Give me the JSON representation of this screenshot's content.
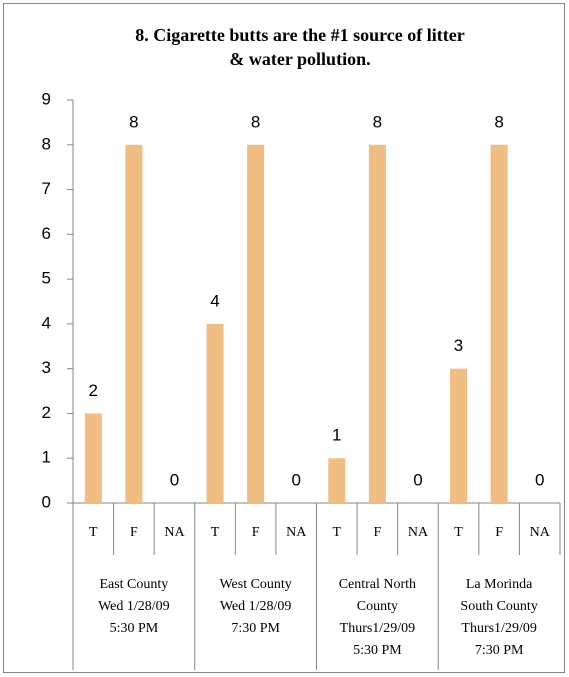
{
  "chart_data": {
    "type": "bar",
    "title": [
      "8. Cigarette butts are the #1 source of litter",
      "& water pollution."
    ],
    "categories": [
      "T",
      "F",
      "NA",
      "T",
      "F",
      "NA",
      "T",
      "F",
      "NA",
      "T",
      "F",
      "NA"
    ],
    "groups": [
      [
        "East County",
        "Wed 1/28/09",
        "5:30 PM"
      ],
      [
        "West County",
        "Wed 1/28/09",
        "7:30 PM"
      ],
      [
        "Central North",
        "County",
        "Thurs1/29/09",
        "5:30 PM"
      ],
      [
        "La Morinda",
        "South County",
        "Thurs1/29/09",
        "7:30 PM"
      ]
    ],
    "values": [
      2,
      8,
      0,
      4,
      8,
      0,
      1,
      8,
      0,
      3,
      8,
      0
    ],
    "color": "#f0be82",
    "ylim": [
      0,
      9
    ],
    "yticks": [
      0,
      1,
      2,
      3,
      4,
      5,
      6,
      7,
      8,
      9
    ],
    "grid": false
  }
}
